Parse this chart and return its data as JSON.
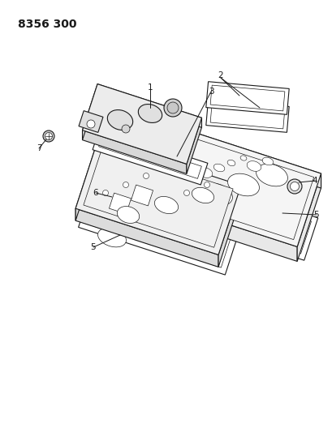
{
  "title": "8356 300",
  "bg_color": "#ffffff",
  "line_color": "#1a1a1a",
  "figsize": [
    4.1,
    5.33
  ],
  "dpi": 100,
  "title_fontsize": 10,
  "label_fontsize": 7.5
}
